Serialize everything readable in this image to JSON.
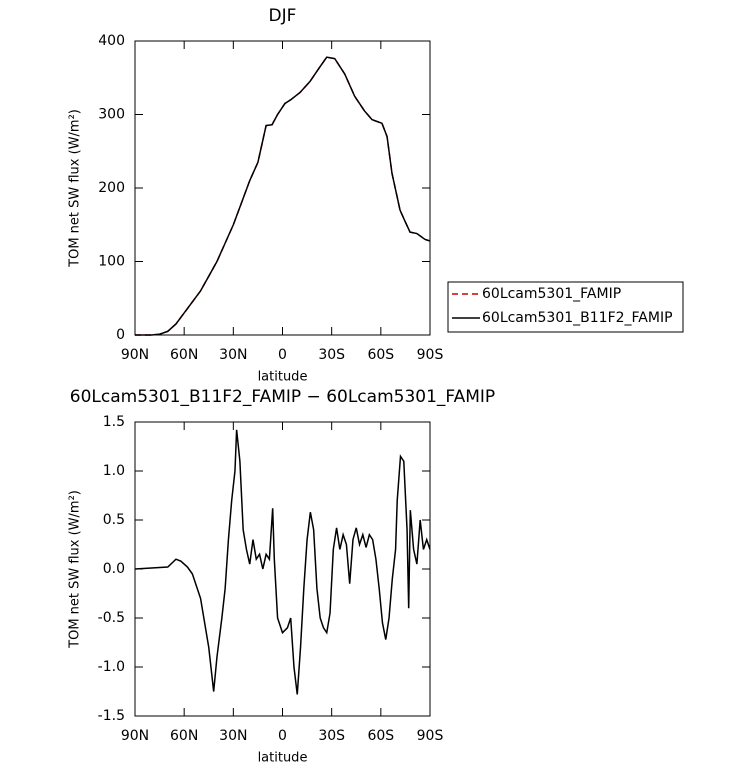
{
  "chart_data": [
    {
      "type": "line",
      "title": "DJF",
      "xlabel": "latitude",
      "ylabel": "TOM net SW flux (W/m²)",
      "x": [
        90,
        80,
        75,
        70,
        65,
        60,
        55,
        50,
        45,
        40,
        35,
        30,
        25,
        20,
        15,
        12.5,
        10,
        6.4,
        3,
        -1.5,
        -5,
        -10.7,
        -16.8,
        -22.9,
        -27,
        -31.9,
        -38,
        -44,
        -50,
        -54.6,
        -60.7,
        -63.8,
        -66.8,
        -71.7,
        -74.7,
        -77.8,
        -82,
        -87,
        -90
      ],
      "series": [
        {
          "name": "60Lcam5301_FAMIP",
          "color": "#cc0000",
          "line_style": "dashed",
          "values": [
            0,
            0,
            1,
            5,
            15,
            30,
            45,
            60,
            80,
            100,
            125,
            150,
            180,
            210,
            235,
            260,
            285,
            286,
            300,
            315,
            320,
            330,
            345,
            365,
            378,
            376,
            355,
            325,
            305,
            293,
            288,
            270,
            220,
            170,
            155,
            140,
            138,
            130,
            128
          ]
        },
        {
          "name": "60Lcam5301_B11F2_FAMIP",
          "color": "#000000",
          "line_style": "solid",
          "values": [
            0,
            0,
            1,
            5,
            15,
            30,
            45,
            60,
            80,
            100,
            125,
            150,
            180,
            210,
            235,
            260,
            285,
            286,
            300,
            315,
            320,
            330,
            345,
            365,
            378,
            376,
            355,
            325,
            305,
            293,
            288,
            270,
            220,
            170,
            155,
            140,
            138,
            130,
            128
          ]
        }
      ],
      "xlim": [
        90,
        -90
      ],
      "xticks": [
        {
          "value": 90,
          "label": "90N"
        },
        {
          "value": 60,
          "label": "60N"
        },
        {
          "value": 30,
          "label": "30N"
        },
        0,
        {
          "value": -30,
          "label": "30S"
        },
        {
          "value": -60,
          "label": "60S"
        },
        {
          "value": -90,
          "label": "90S"
        }
      ],
      "ylim": [
        0,
        400
      ],
      "yticks": [
        0,
        100,
        200,
        300,
        400
      ],
      "legend": "right"
    },
    {
      "type": "line",
      "title": "60Lcam5301_B11F2_FAMIP − 60Lcam5301_FAMIP",
      "xlabel": "latitude",
      "ylabel": "TOM net SW flux (W/m²)",
      "x": [
        90,
        70,
        65,
        62,
        58,
        55,
        50,
        47,
        45,
        42,
        40,
        37,
        35,
        33,
        31,
        29,
        28,
        26,
        24,
        22,
        20,
        18,
        16,
        14,
        12,
        10,
        8,
        6,
        5,
        3,
        0,
        -3,
        -5,
        -7,
        -9,
        -11,
        -13,
        -15,
        -17,
        -19,
        -21,
        -23,
        -25,
        -27,
        -29,
        -31,
        -33,
        -35,
        -37,
        -39,
        -41,
        -43,
        -45,
        -47,
        -49,
        -51,
        -53,
        -55,
        -57,
        -59,
        -61,
        -63,
        -65,
        -67,
        -69,
        -70,
        -72,
        -74,
        -76,
        -77,
        -78,
        -80,
        -82,
        -84,
        -86,
        -88,
        -90
      ],
      "series": [
        {
          "name": null,
          "color": "#000000",
          "line_style": "solid",
          "values": [
            0,
            0.02,
            0.1,
            0.08,
            0.02,
            -0.05,
            -0.3,
            -0.6,
            -0.8,
            -1.25,
            -0.9,
            -0.5,
            -0.2,
            0.3,
            0.7,
            1.0,
            1.42,
            1.1,
            0.4,
            0.2,
            0.05,
            0.3,
            0.1,
            0.15,
            0.0,
            0.15,
            0.1,
            0.62,
            0.1,
            -0.5,
            -0.65,
            -0.6,
            -0.5,
            -1.0,
            -1.28,
            -0.8,
            -0.2,
            0.3,
            0.58,
            0.4,
            -0.2,
            -0.5,
            -0.6,
            -0.65,
            -0.45,
            0.2,
            0.42,
            0.2,
            0.35,
            0.25,
            -0.15,
            0.3,
            0.42,
            0.25,
            0.35,
            0.22,
            0.35,
            0.3,
            0.1,
            -0.2,
            -0.55,
            -0.72,
            -0.5,
            -0.1,
            0.2,
            0.7,
            1.15,
            1.1,
            0.4,
            -0.4,
            0.6,
            0.2,
            0.05,
            0.5,
            0.2,
            0.3,
            0.2
          ]
        }
      ],
      "xlim": [
        90,
        -90
      ],
      "xticks": [
        {
          "value": 90,
          "label": "90N"
        },
        {
          "value": 60,
          "label": "60N"
        },
        {
          "value": 30,
          "label": "30N"
        },
        0,
        {
          "value": -30,
          "label": "30S"
        },
        {
          "value": -60,
          "label": "60S"
        },
        {
          "value": -90,
          "label": "90S"
        }
      ],
      "ylim": [
        -1.5,
        1.5
      ],
      "yticks": [
        -1.5,
        {
          "value": -1.0,
          "label": "-1.0"
        },
        -0.5,
        {
          "value": 0.0,
          "label": "0.0"
        },
        0.5,
        {
          "value": 1.0,
          "label": "1.0"
        },
        1.5
      ]
    }
  ]
}
